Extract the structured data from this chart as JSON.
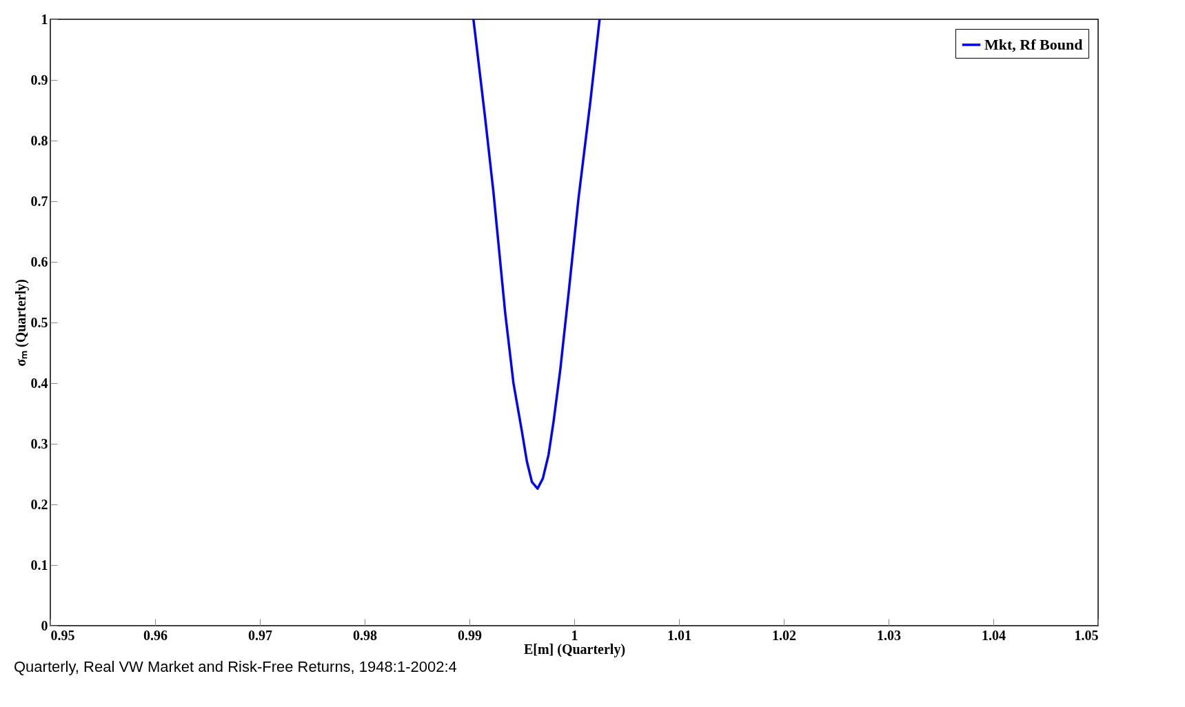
{
  "chart_data": {
    "type": "line",
    "xlabel": "E[m] (Quarterly)",
    "ylabel": "σₘ (Quarterly)",
    "annotations": [
      "Quarterly, Real VW Market and Risk-Free Returns, 1948:1-2002:4"
    ],
    "x": [
      0.99038,
      0.9915,
      0.99229,
      0.99341,
      0.9942,
      0.995,
      0.99548,
      0.99596,
      0.9965,
      0.99701,
      0.99755,
      0.99803,
      0.99866,
      0.99946,
      1.00041,
      1.00153,
      1.00242
    ],
    "series": [
      {
        "name": "Mkt, Rf Bound",
        "color": "#0000ff",
        "values": [
          1,
          0.837,
          0.715,
          0.516,
          0.4,
          0.321,
          0.271,
          0.237,
          0.226,
          0.243,
          0.282,
          0.337,
          0.421,
          0.548,
          0.705,
          0.863,
          1
        ]
      }
    ],
    "xlim": [
      0.95,
      1.05
    ],
    "xticks": [
      0.95,
      0.96,
      0.97,
      0.98,
      0.99,
      1,
      1.01,
      1.02,
      1.03,
      1.04,
      1.05
    ],
    "ylim": [
      0,
      1
    ],
    "yticks": [
      0,
      0.1,
      0.2,
      0.3,
      0.4,
      0.5,
      0.6,
      0.7,
      0.8,
      0.9,
      1
    ],
    "grid": false,
    "legend": "top right"
  }
}
